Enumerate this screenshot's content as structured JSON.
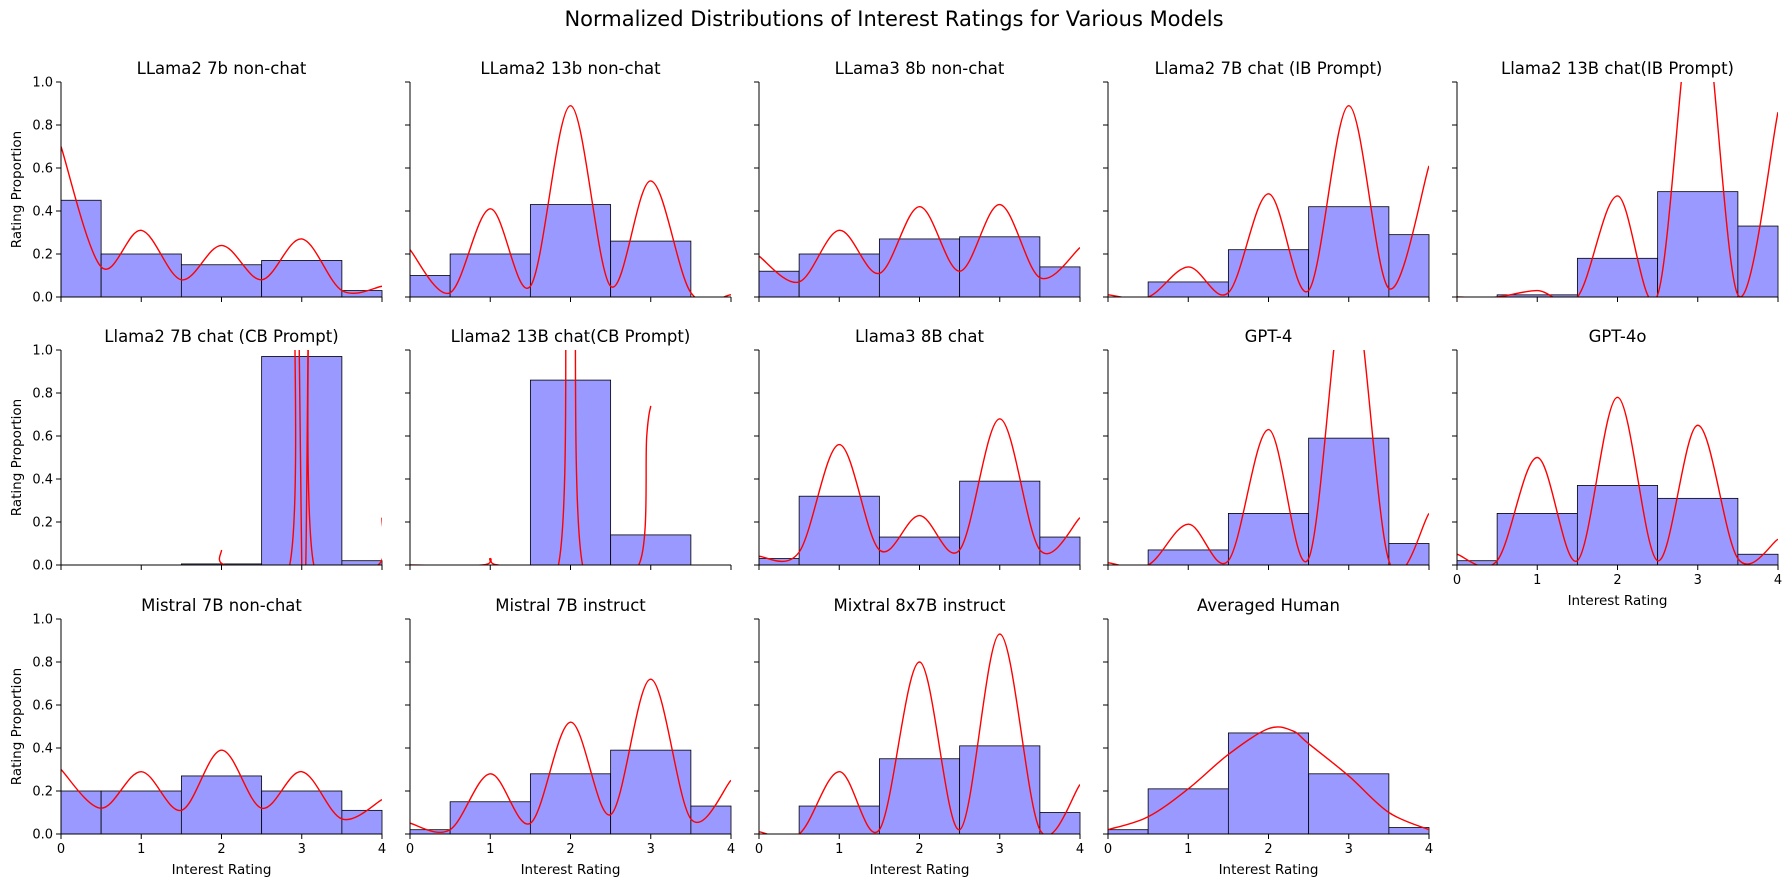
{
  "figure": {
    "suptitle": "Normalized Distributions of Interest Ratings for Various Models"
  },
  "colors": {
    "bar_fill": "#9999ff",
    "bar_edge": "#000000",
    "kde_line": "#ff0000",
    "axis": "#000000"
  },
  "chart_data": [
    {
      "type": "bar",
      "title": "LLama2 7b non-chat",
      "xlabel": "",
      "ylabel": "Rating Proportion",
      "xlim": [
        0,
        4
      ],
      "ylim": [
        0,
        1
      ],
      "x_ticks": [
        "0",
        "1",
        "2",
        "3",
        "4"
      ],
      "y_ticks": [
        "0.0",
        "0.2",
        "0.4",
        "0.6",
        "0.8",
        "1.0"
      ],
      "bins": [
        [
          0,
          0.5
        ],
        [
          0.5,
          1.5
        ],
        [
          1.5,
          2.5
        ],
        [
          2.5,
          3.5
        ],
        [
          3.5,
          4
        ]
      ],
      "values": [
        0.45,
        0.2,
        0.15,
        0.17,
        0.03
      ],
      "kde": [
        [
          0,
          0.7
        ],
        [
          0.5,
          0.14
        ],
        [
          1,
          0.31
        ],
        [
          1.5,
          0.08
        ],
        [
          2,
          0.24
        ],
        [
          2.5,
          0.08
        ],
        [
          3,
          0.27
        ],
        [
          3.5,
          0.03
        ],
        [
          4,
          0.05
        ]
      ]
    },
    {
      "type": "bar",
      "title": "LLama2 13b non-chat",
      "xlabel": "",
      "ylabel": "",
      "xlim": [
        0,
        4
      ],
      "ylim": [
        0,
        1
      ],
      "x_ticks": [
        "0",
        "1",
        "2",
        "3",
        "4"
      ],
      "y_ticks": [],
      "bins": [
        [
          0,
          0.5
        ],
        [
          0.5,
          1.5
        ],
        [
          1.5,
          2.5
        ],
        [
          2.5,
          3.5
        ],
        [
          3.5,
          4
        ]
      ],
      "values": [
        0.1,
        0.2,
        0.43,
        0.26,
        0.0
      ],
      "kde": [
        [
          0,
          0.22
        ],
        [
          0.5,
          0.02
        ],
        [
          1,
          0.41
        ],
        [
          1.5,
          0.05
        ],
        [
          2,
          0.89
        ],
        [
          2.5,
          0.05
        ],
        [
          3,
          0.54
        ],
        [
          3.5,
          0.02
        ],
        [
          4,
          0.01
        ]
      ]
    },
    {
      "type": "bar",
      "title": "LLama3 8b non-chat",
      "xlabel": "",
      "ylabel": "",
      "xlim": [
        0,
        4
      ],
      "ylim": [
        0,
        1
      ],
      "x_ticks": [
        "0",
        "1",
        "2",
        "3",
        "4"
      ],
      "y_ticks": [],
      "bins": [
        [
          0,
          0.5
        ],
        [
          0.5,
          1.5
        ],
        [
          1.5,
          2.5
        ],
        [
          2.5,
          3.5
        ],
        [
          3.5,
          4
        ]
      ],
      "values": [
        0.12,
        0.2,
        0.27,
        0.28,
        0.14
      ],
      "kde": [
        [
          0,
          0.19
        ],
        [
          0.5,
          0.07
        ],
        [
          1,
          0.31
        ],
        [
          1.5,
          0.11
        ],
        [
          2,
          0.42
        ],
        [
          2.5,
          0.12
        ],
        [
          3,
          0.43
        ],
        [
          3.5,
          0.09
        ],
        [
          4,
          0.23
        ]
      ]
    },
    {
      "type": "bar",
      "title": "Llama2 7B chat (IB Prompt)",
      "xlabel": "",
      "ylabel": "",
      "xlim": [
        0,
        4
      ],
      "ylim": [
        0,
        1
      ],
      "x_ticks": [
        "0",
        "1",
        "2",
        "3",
        "4"
      ],
      "y_ticks": [],
      "bins": [
        [
          0,
          0.5
        ],
        [
          0.5,
          1.5
        ],
        [
          1.5,
          2.5
        ],
        [
          2.5,
          3.5
        ],
        [
          3.5,
          4
        ]
      ],
      "values": [
        0.0,
        0.07,
        0.22,
        0.42,
        0.29
      ],
      "kde": [
        [
          0,
          0.01
        ],
        [
          0.5,
          0.0
        ],
        [
          1,
          0.14
        ],
        [
          1.5,
          0.02
        ],
        [
          2,
          0.48
        ],
        [
          2.5,
          0.03
        ],
        [
          3,
          0.89
        ],
        [
          3.5,
          0.04
        ],
        [
          4,
          0.61
        ]
      ]
    },
    {
      "type": "bar",
      "title": "Llama2 13B chat(IB Prompt)",
      "xlabel": "",
      "ylabel": "",
      "xlim": [
        0,
        4
      ],
      "ylim": [
        0,
        1
      ],
      "x_ticks": [
        "0",
        "1",
        "2",
        "3",
        "4"
      ],
      "y_ticks": [],
      "bins": [
        [
          0,
          0.5
        ],
        [
          0.5,
          1.5
        ],
        [
          1.5,
          2.5
        ],
        [
          2.5,
          3.5
        ],
        [
          3.5,
          4
        ]
      ],
      "values": [
        0.0,
        0.01,
        0.18,
        0.49,
        0.33
      ],
      "kde": [
        [
          0,
          0.0
        ],
        [
          0.5,
          0.0
        ],
        [
          1,
          0.03
        ],
        [
          1.5,
          0.0
        ],
        [
          2,
          0.47
        ],
        [
          2.5,
          0.01
        ],
        [
          3,
          1.5
        ],
        [
          3.5,
          0.01
        ],
        [
          4,
          0.86
        ]
      ]
    },
    {
      "type": "bar",
      "title": "Llama2 7B chat (CB Prompt)",
      "xlabel": "",
      "ylabel": "Rating Proportion",
      "xlim": [
        0,
        4
      ],
      "ylim": [
        0,
        1
      ],
      "x_ticks": [
        "0",
        "1",
        "2",
        "3",
        "4"
      ],
      "y_ticks": [
        "0.0",
        "0.2",
        "0.4",
        "0.6",
        "0.8",
        "1.0"
      ],
      "bins": [
        [
          0,
          0.5
        ],
        [
          0.5,
          1.5
        ],
        [
          1.5,
          2.5
        ],
        [
          2.5,
          3.5
        ],
        [
          3.5,
          4
        ]
      ],
      "values": [
        0.0,
        0.0,
        0.005,
        0.97,
        0.02
      ],
      "kde": [
        [
          2,
          0.07
        ],
        [
          2.05,
          0.0
        ],
        [
          2.85,
          0.0
        ],
        [
          2.9,
          1.6
        ],
        [
          2.95,
          1.6
        ],
        [
          3.0,
          0.0
        ],
        [
          3.05,
          0.0
        ],
        [
          3.1,
          1.6
        ],
        [
          3.15,
          0.0
        ],
        [
          3.95,
          0.0
        ],
        [
          4,
          0.22
        ]
      ]
    },
    {
      "type": "bar",
      "title": "Llama2 13B chat(CB Prompt)",
      "xlabel": "",
      "ylabel": "",
      "xlim": [
        0,
        4
      ],
      "ylim": [
        0,
        1
      ],
      "x_ticks": [
        "0",
        "1",
        "2",
        "3",
        "4"
      ],
      "y_ticks": [],
      "bins": [
        [
          0,
          0.5
        ],
        [
          0.5,
          1.5
        ],
        [
          1.5,
          2.5
        ],
        [
          2.5,
          3.5
        ],
        [
          3.5,
          4
        ]
      ],
      "values": [
        0.0,
        0.0,
        0.86,
        0.14,
        0.0
      ],
      "kde": [
        [
          0,
          0.0
        ],
        [
          0.9,
          0.0
        ],
        [
          1,
          0.03
        ],
        [
          1.1,
          0.0
        ],
        [
          1.85,
          0.0
        ],
        [
          1.95,
          1.6
        ],
        [
          2.05,
          1.6
        ],
        [
          2.15,
          0.0
        ],
        [
          2.85,
          0.0
        ],
        [
          2.95,
          0.6
        ],
        [
          3,
          0.74
        ]
      ]
    },
    {
      "type": "bar",
      "title": "Llama3 8B chat",
      "xlabel": "",
      "ylabel": "",
      "xlim": [
        0,
        4
      ],
      "ylim": [
        0,
        1
      ],
      "x_ticks": [
        "0",
        "1",
        "2",
        "3",
        "4"
      ],
      "y_ticks": [],
      "bins": [
        [
          0,
          0.5
        ],
        [
          0.5,
          1.5
        ],
        [
          1.5,
          2.5
        ],
        [
          2.5,
          3.5
        ],
        [
          3.5,
          4
        ]
      ],
      "values": [
        0.03,
        0.32,
        0.13,
        0.39,
        0.13
      ],
      "kde": [
        [
          0,
          0.04
        ],
        [
          0.5,
          0.06
        ],
        [
          1,
          0.56
        ],
        [
          1.5,
          0.07
        ],
        [
          2,
          0.23
        ],
        [
          2.5,
          0.07
        ],
        [
          3,
          0.68
        ],
        [
          3.5,
          0.07
        ],
        [
          4,
          0.22
        ]
      ]
    },
    {
      "type": "bar",
      "title": "GPT-4",
      "xlabel": "",
      "ylabel": "",
      "xlim": [
        0,
        4
      ],
      "ylim": [
        0,
        1
      ],
      "x_ticks": [
        "0",
        "1",
        "2",
        "3",
        "4"
      ],
      "y_ticks": [],
      "bins": [
        [
          0,
          0.5
        ],
        [
          0.5,
          1.5
        ],
        [
          1.5,
          2.5
        ],
        [
          2.5,
          3.5
        ],
        [
          3.5,
          4
        ]
      ],
      "values": [
        0.0,
        0.07,
        0.24,
        0.59,
        0.1
      ],
      "kde": [
        [
          0,
          0.01
        ],
        [
          0.5,
          0.0
        ],
        [
          1,
          0.19
        ],
        [
          1.5,
          0.02
        ],
        [
          2,
          0.63
        ],
        [
          2.5,
          0.03
        ],
        [
          3,
          1.4
        ],
        [
          3.5,
          0.02
        ],
        [
          4,
          0.24
        ]
      ]
    },
    {
      "type": "bar",
      "title": "GPT-4o",
      "xlabel": "Interest Rating",
      "ylabel": "",
      "xlim": [
        0,
        4
      ],
      "ylim": [
        0,
        1
      ],
      "x_ticks": [
        "0",
        "1",
        "2",
        "3",
        "4"
      ],
      "y_ticks": [],
      "bins": [
        [
          0,
          0.5
        ],
        [
          0.5,
          1.5
        ],
        [
          1.5,
          2.5
        ],
        [
          2.5,
          3.5
        ],
        [
          3.5,
          4
        ]
      ],
      "values": [
        0.02,
        0.24,
        0.37,
        0.31,
        0.05
      ],
      "kde": [
        [
          0,
          0.05
        ],
        [
          0.5,
          0.02
        ],
        [
          1,
          0.5
        ],
        [
          1.5,
          0.02
        ],
        [
          2,
          0.78
        ],
        [
          2.5,
          0.02
        ],
        [
          3,
          0.65
        ],
        [
          3.5,
          0.03
        ],
        [
          4,
          0.12
        ]
      ]
    },
    {
      "type": "bar",
      "title": "Mistral 7B non-chat",
      "xlabel": "Interest Rating",
      "ylabel": "Rating Proportion",
      "xlim": [
        0,
        4
      ],
      "ylim": [
        0,
        1
      ],
      "x_ticks": [
        "0",
        "1",
        "2",
        "3",
        "4"
      ],
      "y_ticks": [
        "0.0",
        "0.2",
        "0.4",
        "0.6",
        "0.8",
        "1.0"
      ],
      "bins": [
        [
          0,
          0.5
        ],
        [
          0.5,
          1.5
        ],
        [
          1.5,
          2.5
        ],
        [
          2.5,
          3.5
        ],
        [
          3.5,
          4
        ]
      ],
      "values": [
        0.2,
        0.2,
        0.27,
        0.2,
        0.11
      ],
      "kde": [
        [
          0,
          0.3
        ],
        [
          0.5,
          0.12
        ],
        [
          1,
          0.29
        ],
        [
          1.5,
          0.11
        ],
        [
          2,
          0.39
        ],
        [
          2.5,
          0.12
        ],
        [
          3,
          0.29
        ],
        [
          3.5,
          0.07
        ],
        [
          4,
          0.16
        ]
      ]
    },
    {
      "type": "bar",
      "title": "Mistral 7B instruct",
      "xlabel": "Interest Rating",
      "ylabel": "",
      "xlim": [
        0,
        4
      ],
      "ylim": [
        0,
        1
      ],
      "x_ticks": [
        "0",
        "1",
        "2",
        "3",
        "4"
      ],
      "y_ticks": [],
      "bins": [
        [
          0,
          0.5
        ],
        [
          0.5,
          1.5
        ],
        [
          1.5,
          2.5
        ],
        [
          2.5,
          3.5
        ],
        [
          3.5,
          4
        ]
      ],
      "values": [
        0.02,
        0.15,
        0.28,
        0.39,
        0.13
      ],
      "kde": [
        [
          0,
          0.05
        ],
        [
          0.5,
          0.02
        ],
        [
          1,
          0.28
        ],
        [
          1.5,
          0.05
        ],
        [
          2,
          0.52
        ],
        [
          2.5,
          0.09
        ],
        [
          3,
          0.72
        ],
        [
          3.5,
          0.07
        ],
        [
          4,
          0.25
        ]
      ]
    },
    {
      "type": "bar",
      "title": "Mixtral 8x7B instruct",
      "xlabel": "Interest Rating",
      "ylabel": "",
      "xlim": [
        0,
        4
      ],
      "ylim": [
        0,
        1
      ],
      "x_ticks": [
        "0",
        "1",
        "2",
        "3",
        "4"
      ],
      "y_ticks": [],
      "bins": [
        [
          0,
          0.5
        ],
        [
          0.5,
          1.5
        ],
        [
          1.5,
          2.5
        ],
        [
          2.5,
          3.5
        ],
        [
          3.5,
          4
        ]
      ],
      "values": [
        0.0,
        0.13,
        0.35,
        0.41,
        0.1
      ],
      "kde": [
        [
          0,
          0.01
        ],
        [
          0.5,
          0.0
        ],
        [
          1,
          0.29
        ],
        [
          1.5,
          0.02
        ],
        [
          2,
          0.8
        ],
        [
          2.5,
          0.02
        ],
        [
          3,
          0.93
        ],
        [
          3.5,
          0.02
        ],
        [
          4,
          0.23
        ]
      ]
    },
    {
      "type": "bar",
      "title": "Averaged Human",
      "xlabel": "Interest Rating",
      "ylabel": "",
      "xlim": [
        0,
        4
      ],
      "ylim": [
        0,
        1
      ],
      "x_ticks": [
        "0",
        "1",
        "2",
        "3",
        "4"
      ],
      "y_ticks": [],
      "bins": [
        [
          0,
          0.5
        ],
        [
          0.5,
          1.5
        ],
        [
          1.5,
          2.5
        ],
        [
          2.5,
          3.5
        ],
        [
          3.5,
          4
        ]
      ],
      "values": [
        0.02,
        0.21,
        0.47,
        0.28,
        0.03
      ],
      "kde": [
        [
          0,
          0.02
        ],
        [
          0.5,
          0.08
        ],
        [
          1,
          0.21
        ],
        [
          1.5,
          0.37
        ],
        [
          2,
          0.49
        ],
        [
          2.3,
          0.48
        ],
        [
          2.5,
          0.42
        ],
        [
          3,
          0.27
        ],
        [
          3.5,
          0.1
        ],
        [
          4,
          0.02
        ]
      ]
    }
  ]
}
